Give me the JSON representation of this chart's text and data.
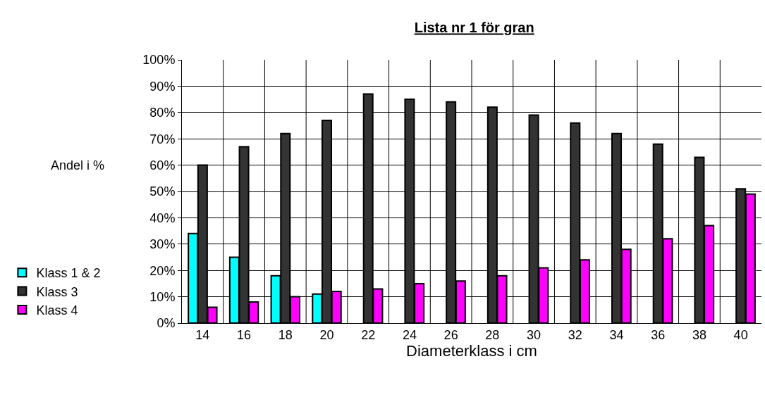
{
  "chart_data": {
    "type": "bar",
    "title": "Lista nr 1 för gran",
    "xlabel": "Diameterklass i cm",
    "ylabel": "Andel i %",
    "categories": [
      "14",
      "16",
      "18",
      "20",
      "22",
      "24",
      "26",
      "28",
      "30",
      "32",
      "34",
      "36",
      "38",
      "40"
    ],
    "series": [
      {
        "name": "Klass 1 & 2",
        "color": "#00ffff",
        "values": [
          34,
          25,
          18,
          11,
          null,
          null,
          null,
          null,
          null,
          null,
          null,
          null,
          null,
          null
        ]
      },
      {
        "name": "Klass 3",
        "color": "#333333",
        "values": [
          60,
          67,
          72,
          77,
          87,
          85,
          84,
          82,
          79,
          76,
          72,
          68,
          63,
          51
        ]
      },
      {
        "name": "Klass 4",
        "color": "#ff00ff",
        "values": [
          6,
          8,
          10,
          12,
          13,
          15,
          16,
          18,
          21,
          24,
          28,
          32,
          37,
          49
        ]
      }
    ],
    "ylim": [
      0,
      100
    ],
    "yticks": [
      {
        "value": 0,
        "label": "0%"
      },
      {
        "value": 10,
        "label": "10%"
      },
      {
        "value": 20,
        "label": "20%"
      },
      {
        "value": 30,
        "label": "30%"
      },
      {
        "value": 40,
        "label": "40%"
      },
      {
        "value": 50,
        "label": "50%"
      },
      {
        "value": 60,
        "label": "60%"
      },
      {
        "value": 70,
        "label": "70%"
      },
      {
        "value": 80,
        "label": "80%"
      },
      {
        "value": 90,
        "label": "90%"
      },
      {
        "value": 100,
        "label": "100%"
      }
    ],
    "grid": true,
    "legend": "left"
  }
}
